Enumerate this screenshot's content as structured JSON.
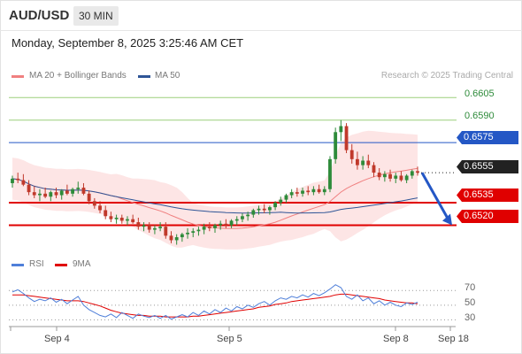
{
  "header": {
    "symbol": "AUD/USD",
    "timeframe": "30 MIN",
    "datetime": "Monday, September 8, 2025 3:25:46 AM CET"
  },
  "legend": {
    "ma20_label": "MA 20 + Bollinger Bands",
    "ma50_label": "MA 50",
    "credit": "Research © 2025 Trading Central",
    "rsi_label": "RSI",
    "rsi_ma_label": "9MA"
  },
  "colors": {
    "bull": "#2e8b3a",
    "bear": "#c0392b",
    "resistance": "#9ccf7a",
    "pivot": "#2457c5",
    "support": "#e00000",
    "last": "#222222",
    "ma20": "#f08080",
    "ma50": "#2f5597",
    "band": "#fbd4d4",
    "rsi": "#4f7fd9",
    "rsi_ma": "#e00000"
  },
  "levels": {
    "r2": "0.6605",
    "r1": "0.6590",
    "pivot": "0.6575",
    "last": "0.6555",
    "s1": "0.6535",
    "s2": "0.6520"
  },
  "rsi_levels": [
    "70",
    "50",
    "30"
  ],
  "x_axis": [
    "Sep 4",
    "Sep 5",
    "Sep 8",
    "Sep 18"
  ],
  "chart_data": [
    {
      "type": "candlestick",
      "title": "AUD/USD",
      "ylim": [
        0.6502,
        0.6614
      ],
      "levels": [
        0.6605,
        0.659,
        0.6575,
        0.6555,
        0.6535,
        0.652
      ],
      "ohlc": [
        [
          0.6548,
          0.6553,
          0.6545,
          0.6551
        ],
        [
          0.6551,
          0.6555,
          0.6548,
          0.655
        ],
        [
          0.655,
          0.6554,
          0.6546,
          0.6547
        ],
        [
          0.6547,
          0.655,
          0.654,
          0.6542
        ],
        [
          0.6542,
          0.6546,
          0.6538,
          0.654
        ],
        [
          0.654,
          0.6544,
          0.6536,
          0.6541
        ],
        [
          0.6541,
          0.6545,
          0.6538,
          0.6539
        ],
        [
          0.6539,
          0.6543,
          0.6536,
          0.6542
        ],
        [
          0.6542,
          0.6545,
          0.6538,
          0.654
        ],
        [
          0.654,
          0.6544,
          0.6537,
          0.6543
        ],
        [
          0.6543,
          0.6547,
          0.654,
          0.6541
        ],
        [
          0.6541,
          0.6545,
          0.6539,
          0.6544
        ],
        [
          0.6544,
          0.6549,
          0.6541,
          0.6545
        ],
        [
          0.6545,
          0.6548,
          0.654,
          0.6541
        ],
        [
          0.6541,
          0.6543,
          0.6534,
          0.6536
        ],
        [
          0.6536,
          0.6538,
          0.6531,
          0.6533
        ],
        [
          0.6533,
          0.6536,
          0.6528,
          0.653
        ],
        [
          0.653,
          0.6533,
          0.6524,
          0.6526
        ],
        [
          0.6526,
          0.6529,
          0.6522,
          0.6524
        ],
        [
          0.6524,
          0.6527,
          0.6521,
          0.6525
        ],
        [
          0.6525,
          0.6527,
          0.6521,
          0.6523
        ],
        [
          0.6523,
          0.6526,
          0.652,
          0.6524
        ],
        [
          0.6524,
          0.6527,
          0.6521,
          0.6522
        ],
        [
          0.6522,
          0.6525,
          0.6517,
          0.6519
        ],
        [
          0.6519,
          0.6522,
          0.6516,
          0.652
        ],
        [
          0.652,
          0.6522,
          0.6515,
          0.6517
        ],
        [
          0.6517,
          0.652,
          0.6514,
          0.6518
        ],
        [
          0.6518,
          0.6522,
          0.6516,
          0.6519
        ],
        [
          0.6519,
          0.6522,
          0.6511,
          0.6513
        ],
        [
          0.6513,
          0.6516,
          0.6508,
          0.651
        ],
        [
          0.651,
          0.6514,
          0.6507,
          0.6512
        ],
        [
          0.6512,
          0.6515,
          0.6509,
          0.6514
        ],
        [
          0.6514,
          0.6518,
          0.6511,
          0.6515
        ],
        [
          0.6515,
          0.6518,
          0.6512,
          0.6516
        ],
        [
          0.6516,
          0.6519,
          0.6513,
          0.6517
        ],
        [
          0.6517,
          0.6521,
          0.6514,
          0.6519
        ],
        [
          0.6519,
          0.6522,
          0.6516,
          0.6518
        ],
        [
          0.6518,
          0.6521,
          0.6515,
          0.652
        ],
        [
          0.652,
          0.6523,
          0.6517,
          0.6521
        ],
        [
          0.6521,
          0.6524,
          0.6518,
          0.652
        ],
        [
          0.652,
          0.6524,
          0.6518,
          0.6523
        ],
        [
          0.6523,
          0.6526,
          0.652,
          0.6524
        ],
        [
          0.6524,
          0.6528,
          0.6522,
          0.6526
        ],
        [
          0.6526,
          0.6529,
          0.6523,
          0.6527
        ],
        [
          0.6527,
          0.6531,
          0.6525,
          0.653
        ],
        [
          0.653,
          0.6533,
          0.6527,
          0.6531
        ],
        [
          0.6531,
          0.6534,
          0.6528,
          0.653
        ],
        [
          0.653,
          0.6533,
          0.6527,
          0.6532
        ],
        [
          0.6532,
          0.6536,
          0.653,
          0.6535
        ],
        [
          0.6535,
          0.6539,
          0.6533,
          0.6537
        ],
        [
          0.6537,
          0.6541,
          0.6535,
          0.654
        ],
        [
          0.654,
          0.6544,
          0.6538,
          0.6542
        ],
        [
          0.6542,
          0.6545,
          0.6539,
          0.6541
        ],
        [
          0.6541,
          0.6545,
          0.6539,
          0.6543
        ],
        [
          0.6543,
          0.6546,
          0.654,
          0.6542
        ],
        [
          0.6542,
          0.6546,
          0.654,
          0.6544
        ],
        [
          0.6544,
          0.6547,
          0.6541,
          0.6542
        ],
        [
          0.6542,
          0.6546,
          0.654,
          0.6544
        ],
        [
          0.6544,
          0.6566,
          0.6542,
          0.6564
        ],
        [
          0.6564,
          0.6585,
          0.6561,
          0.6582
        ],
        [
          0.6582,
          0.659,
          0.6576,
          0.6586
        ],
        [
          0.6586,
          0.6588,
          0.6568,
          0.657
        ],
        [
          0.657,
          0.6574,
          0.6561,
          0.6564
        ],
        [
          0.6564,
          0.6569,
          0.6557,
          0.656
        ],
        [
          0.656,
          0.6566,
          0.6557,
          0.6563
        ],
        [
          0.6563,
          0.6567,
          0.6558,
          0.656
        ],
        [
          0.656,
          0.6562,
          0.6552,
          0.6555
        ],
        [
          0.6555,
          0.6558,
          0.655,
          0.6552
        ],
        [
          0.6552,
          0.6556,
          0.6549,
          0.6554
        ],
        [
          0.6554,
          0.6557,
          0.6549,
          0.6551
        ],
        [
          0.6551,
          0.6555,
          0.6548,
          0.6553
        ],
        [
          0.6553,
          0.6556,
          0.6549,
          0.655
        ],
        [
          0.655,
          0.6554,
          0.6548,
          0.6553
        ],
        [
          0.6553,
          0.6557,
          0.6551,
          0.6556
        ],
        [
          0.6556,
          0.6559,
          0.6553,
          0.6555
        ]
      ],
      "forecast": [
        0.6555,
        0.652
      ]
    },
    {
      "type": "line",
      "title": "RSI",
      "ylim": [
        22,
        80
      ],
      "levels": [
        70,
        50,
        30
      ],
      "series": [
        {
          "name": "RSI",
          "values": [
            68,
            71,
            66,
            60,
            55,
            58,
            56,
            60,
            54,
            58,
            52,
            57,
            62,
            50,
            44,
            40,
            36,
            34,
            38,
            33,
            40,
            36,
            32,
            38,
            35,
            33,
            36,
            32,
            36,
            31,
            34,
            37,
            34,
            40,
            36,
            42,
            38,
            44,
            40,
            46,
            42,
            48,
            45,
            50,
            47,
            52,
            55,
            50,
            56,
            60,
            58,
            62,
            60,
            64,
            61,
            66,
            63,
            67,
            72,
            78,
            74,
            62,
            58,
            64,
            56,
            60,
            52,
            56,
            50,
            54,
            50,
            48,
            53,
            51,
            54
          ]
        },
        {
          "name": "9MA",
          "values": [
            64,
            64,
            64,
            63,
            62,
            61,
            60,
            59,
            58,
            57,
            56,
            56,
            56,
            55,
            53,
            51,
            49,
            46,
            43,
            41,
            39,
            38,
            37,
            36,
            36,
            35,
            35,
            35,
            34,
            34,
            34,
            34,
            34,
            35,
            35,
            36,
            37,
            38,
            39,
            40,
            41,
            42,
            43,
            44,
            45,
            47,
            48,
            49,
            51,
            52,
            53,
            55,
            56,
            57,
            58,
            59,
            60,
            61,
            62,
            64,
            65,
            65,
            64,
            63,
            62,
            61,
            60,
            59,
            57,
            56,
            55,
            54,
            53,
            53,
            52
          ]
        }
      ]
    }
  ]
}
